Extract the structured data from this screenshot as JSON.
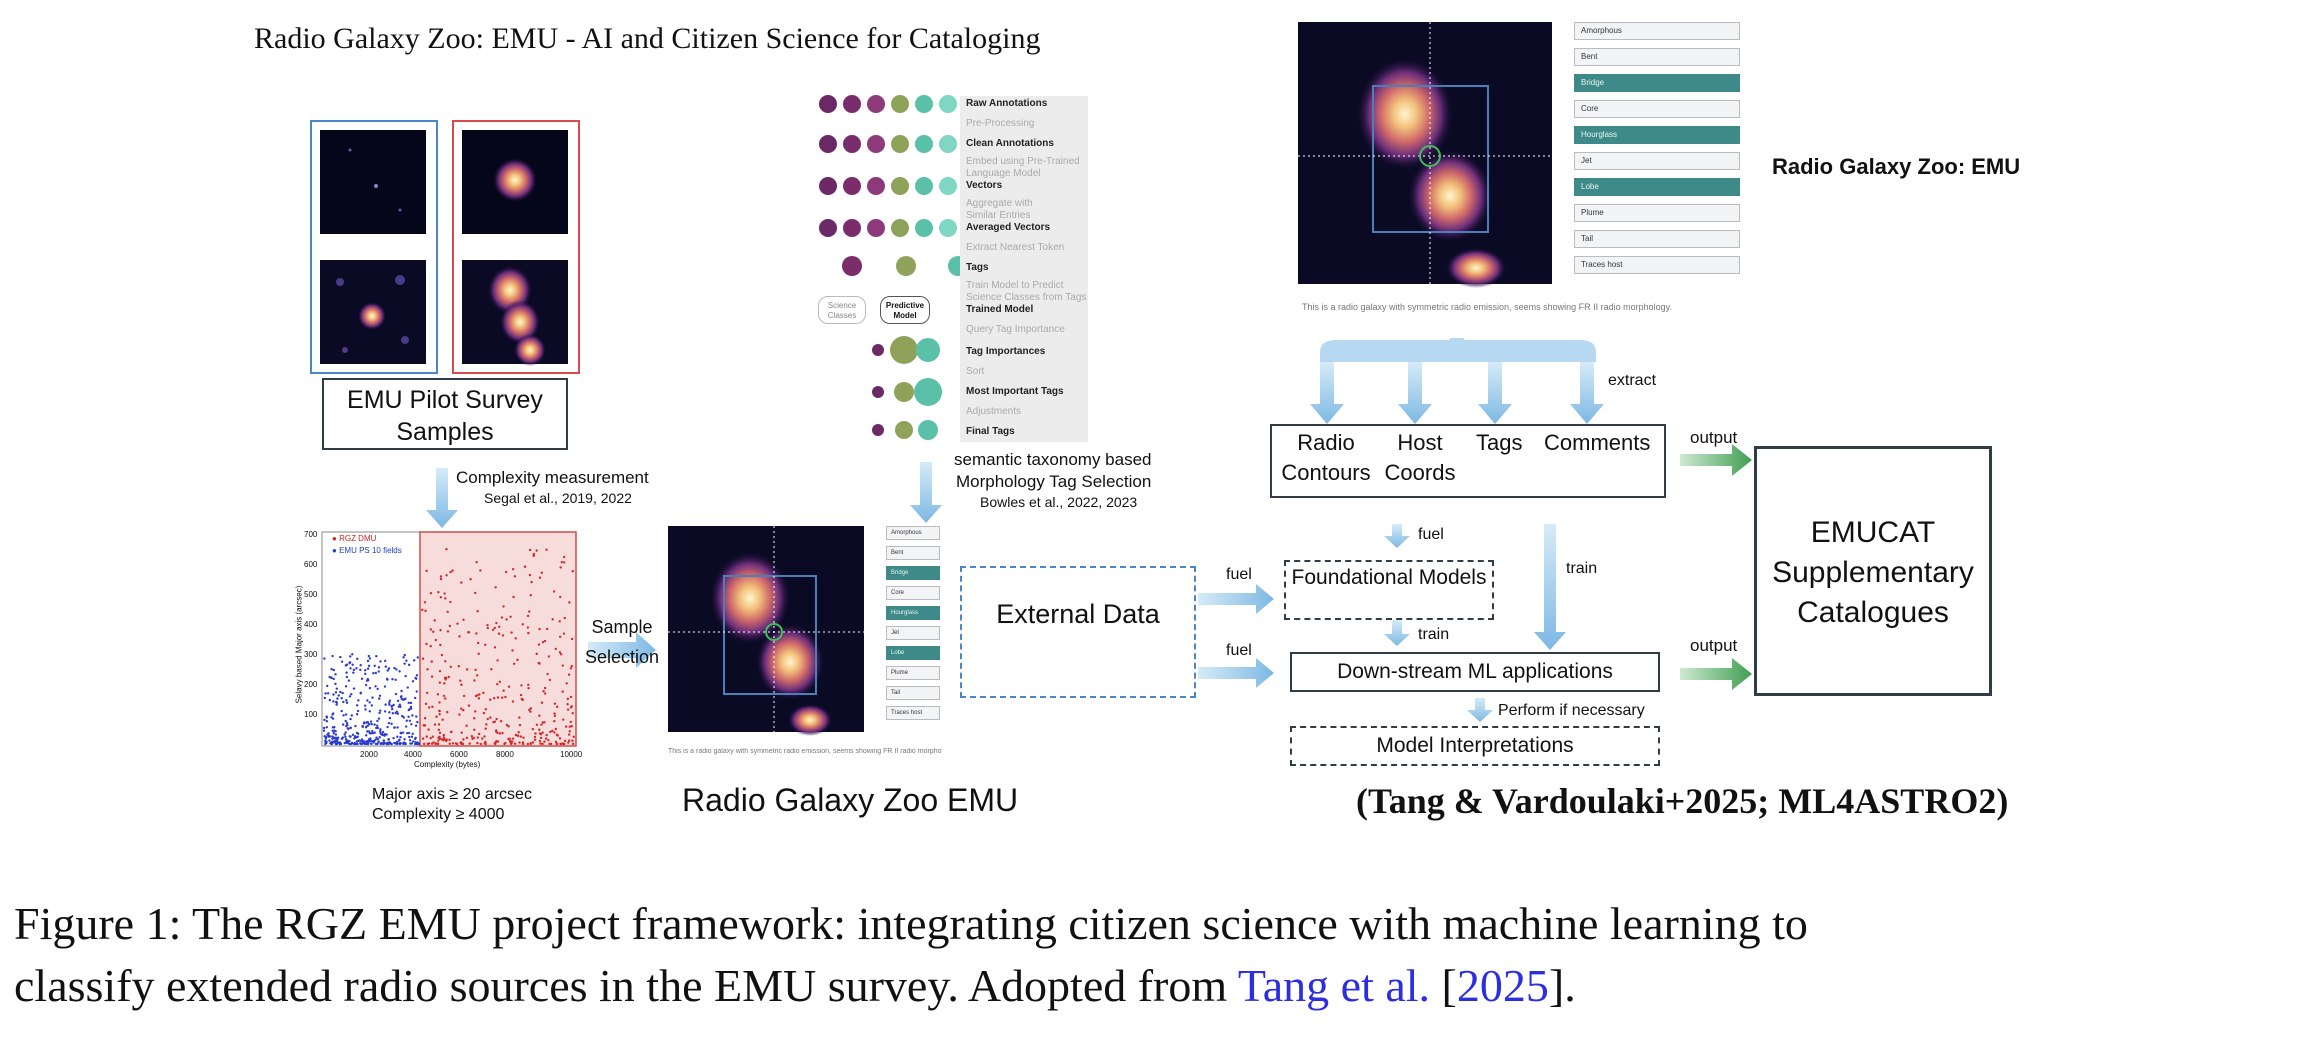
{
  "figure": {
    "main_title": "Radio Galaxy Zoo: EMU - AI and Citizen Science for Cataloging",
    "left": {
      "pilot_label": "EMU Pilot Survey Samples",
      "complexity_label": "Complexity measurement",
      "complexity_cite": "Segal et al., 2019, 2022",
      "sample_selection": "Sample Selection",
      "criteria_line1": "Major axis ≥ 20 arcsec",
      "criteria_line2": "Complexity ≥ 4000"
    },
    "scatter": {
      "legend": [
        "RGZ DMU",
        "EMU PS 10 fields"
      ],
      "xlabel": "Complexity (bytes)",
      "ylabel": "Selavy based Major axis (arcsec)",
      "xticks": [
        "2000",
        "4000",
        "6000",
        "8000",
        "10000"
      ],
      "yticks": [
        "700",
        "600",
        "500",
        "400",
        "300",
        "200",
        "100"
      ]
    },
    "flow": {
      "steps": [
        {
          "label": "Raw Annotations",
          "style": "dark"
        },
        {
          "label": "Pre-Processing",
          "style": "light"
        },
        {
          "label": "Clean Annotations",
          "style": "dark"
        },
        {
          "label": "Embed using Pre-Trained",
          "style": "light"
        },
        {
          "label": "Language Model",
          "style": "light"
        },
        {
          "label": "Vectors",
          "style": "dark"
        },
        {
          "label": "Aggregate with",
          "style": "light"
        },
        {
          "label": "Similar Entries",
          "style": "light"
        },
        {
          "label": "Averaged Vectors",
          "style": "dark"
        },
        {
          "label": "Extract Nearest Token",
          "style": "light"
        },
        {
          "label": "Tags",
          "style": "dark"
        },
        {
          "label": "Train Model to Predict",
          "style": "light"
        },
        {
          "label": "Science Classes from Tags",
          "style": "light"
        },
        {
          "label": "Trained Model",
          "style": "dark"
        },
        {
          "label": "Query Tag Importance",
          "style": "light"
        },
        {
          "label": "Tag Importances",
          "style": "dark"
        },
        {
          "label": "Sort",
          "style": "light"
        },
        {
          "label": "Most Important Tags",
          "style": "dark"
        },
        {
          "label": "Adjustments",
          "style": "light"
        },
        {
          "label": "Final Tags",
          "style": "dark"
        }
      ],
      "science_classes": "Science Classes",
      "predictive_model": "Predictive Model",
      "caption_line1": "semantic taxonomy based",
      "caption_line2": "Morphology Tag Selection",
      "cite": "Bowles et al., 2022, 2023"
    },
    "rgz_small": {
      "tags": [
        "Amorphous",
        "Bent",
        "Bridge",
        "Core",
        "Hourglass",
        "Jet",
        "Lobe",
        "Plume",
        "Tail",
        "Traces host"
      ],
      "active": [
        2,
        4,
        6
      ],
      "comment": "This is a radio galaxy with symmetric radio emission, seems showing FR II radio morphology.",
      "label": "Radio Galaxy Zoo EMU"
    },
    "rgz_top": {
      "label": "Radio Galaxy Zoo: EMU",
      "tags": [
        "Amorphous",
        "Bent",
        "Bridge",
        "Core",
        "Hourglass",
        "Jet",
        "Lobe",
        "Plume",
        "Tail",
        "Traces host"
      ],
      "active": [
        2,
        4,
        6
      ],
      "comment": "This is a radio galaxy with symmetric radio emission, seems showing FR II radio morphology."
    },
    "pipeline": {
      "extract": "extract",
      "products": [
        "Radio Contours",
        "Host Coords",
        "Tags",
        "Comments"
      ],
      "external_data": "External Data",
      "fuel": "fuel",
      "train": "train",
      "output": "output",
      "foundational": "Foundational Models",
      "downstream": "Down-stream ML applications",
      "perform": "Perform if necessary",
      "interpretations": "Model Interpretations",
      "emucat": "EMUCAT Supplementary Catalogues",
      "citation": "(Tang & Vardoulaki+2025; ML4ASTRO2)"
    },
    "caption": {
      "line1": "Figure 1:  The RGZ EMU project framework:  integrating citizen science with machine learning to",
      "line2_pre": "classify extended radio sources in the EMU survey. Adopted from ",
      "line2_cite": "Tang et al.",
      "line2_mid": " [",
      "line2_year": "2025",
      "line2_post": "]."
    },
    "colors": {
      "accent_arrow": "#8fc3e8",
      "output_arrow": "#4daa5c",
      "teal": "#3d8a88",
      "left_frame": "#4a86c8",
      "right_frame": "#d94a4a",
      "citation_blue": "#2b2fe0"
    }
  }
}
